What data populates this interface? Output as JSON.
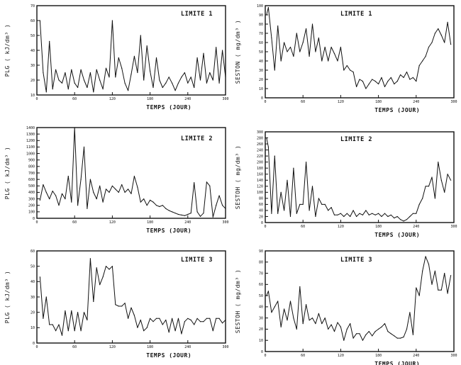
{
  "chart_data": [
    {
      "type": "line",
      "title": "LIMITE 1",
      "xlabel": "TEMPS (JOUR)",
      "ylabel": "PLG ( kJ/dm³ )",
      "xlim": [
        0,
        300
      ],
      "ylim": [
        10,
        70
      ],
      "xticks": [
        0,
        60,
        120,
        180,
        240,
        300
      ],
      "xtick_labels": [
        "0",
        "60",
        "120",
        "180",
        "240",
        "300"
      ],
      "yticks": [
        10,
        20,
        30,
        40,
        50,
        60,
        70
      ],
      "ytick_labels": [
        "10",
        "20",
        "30",
        "40",
        "50",
        "60",
        "70"
      ],
      "x": [
        5,
        10,
        15,
        20,
        25,
        30,
        35,
        40,
        45,
        50,
        55,
        60,
        65,
        70,
        75,
        80,
        85,
        90,
        95,
        100,
        105,
        110,
        115,
        120,
        125,
        130,
        135,
        140,
        145,
        150,
        155,
        160,
        165,
        170,
        175,
        180,
        185,
        190,
        195,
        200,
        205,
        210,
        215,
        220,
        225,
        230,
        235,
        240,
        245,
        250,
        255,
        260,
        265,
        270,
        275,
        280,
        285,
        290,
        295,
        300
      ],
      "values": [
        60,
        25,
        12,
        46,
        14,
        27,
        20,
        18,
        25,
        14,
        27,
        18,
        15,
        27,
        20,
        15,
        25,
        12,
        27,
        20,
        14,
        28,
        22,
        60,
        22,
        35,
        28,
        18,
        13,
        24,
        36,
        25,
        50,
        20,
        43,
        26,
        15,
        35,
        20,
        15,
        18,
        22,
        18,
        13,
        18,
        22,
        25,
        18,
        22,
        15,
        35,
        20,
        38,
        18,
        25,
        20,
        42,
        18,
        40,
        22
      ],
      "series": [
        {
          "name": "PLG"
        }
      ]
    },
    {
      "type": "line",
      "title": "LIMITE 1",
      "xlabel": "TEMPS (JOUR)",
      "ylabel": "SESTON ( mg/dm³ )",
      "xlim": [
        0,
        300
      ],
      "ylim": [
        0,
        100
      ],
      "xticks": [
        0,
        60,
        120,
        180,
        240,
        300
      ],
      "xtick_labels": [
        "0",
        "60",
        "120",
        "180",
        "240",
        "300"
      ],
      "yticks": [
        0,
        10,
        20,
        30,
        40,
        50,
        60,
        70,
        80,
        90,
        100
      ],
      "ytick_labels": [
        "0",
        "10",
        "20",
        "30",
        "40",
        "50",
        "60",
        "70",
        "80",
        "90",
        "100"
      ],
      "x": [
        2,
        5,
        10,
        15,
        20,
        25,
        30,
        35,
        40,
        45,
        50,
        55,
        60,
        65,
        70,
        75,
        80,
        85,
        90,
        95,
        100,
        105,
        110,
        115,
        120,
        125,
        130,
        135,
        140,
        145,
        150,
        155,
        160,
        165,
        170,
        175,
        180,
        185,
        190,
        195,
        200,
        205,
        210,
        215,
        220,
        225,
        230,
        235,
        240,
        245,
        250,
        255,
        260,
        265,
        270,
        275,
        280,
        285,
        290,
        295
      ],
      "values": [
        90,
        98,
        65,
        30,
        78,
        40,
        60,
        50,
        55,
        45,
        70,
        50,
        60,
        75,
        45,
        80,
        50,
        65,
        40,
        55,
        40,
        55,
        48,
        40,
        55,
        30,
        35,
        30,
        28,
        12,
        20,
        18,
        10,
        15,
        20,
        18,
        15,
        22,
        12,
        18,
        22,
        15,
        18,
        25,
        22,
        28,
        20,
        22,
        18,
        35,
        40,
        45,
        55,
        60,
        70,
        75,
        68,
        60,
        82,
        58
      ],
      "series": [
        {
          "name": "SESTON"
        }
      ]
    },
    {
      "type": "line",
      "title": "LIMITE 2",
      "xlabel": "TEMPS (JOUR)",
      "ylabel": "PLG ( kJ/dm³ )",
      "xlim": [
        0,
        300
      ],
      "ylim": [
        0,
        1400
      ],
      "xticks": [
        0,
        60,
        120,
        180,
        240,
        300
      ],
      "xtick_labels": [
        "0",
        "60",
        "120",
        "180",
        "240",
        "300"
      ],
      "yticks": [
        0,
        100,
        200,
        300,
        400,
        500,
        600,
        700,
        800,
        900,
        1000,
        1100,
        1200,
        1300,
        1400
      ],
      "ytick_labels": [
        "0",
        "100",
        "200",
        "300",
        "400",
        "500",
        "600",
        "700",
        "800",
        "900",
        "1000",
        "1100",
        "1200",
        "1300",
        "1400"
      ],
      "x": [
        5,
        10,
        15,
        20,
        25,
        30,
        35,
        40,
        45,
        50,
        55,
        60,
        65,
        70,
        75,
        80,
        85,
        90,
        95,
        100,
        105,
        110,
        115,
        120,
        125,
        130,
        135,
        140,
        145,
        150,
        155,
        160,
        165,
        170,
        175,
        180,
        185,
        190,
        195,
        200,
        205,
        210,
        215,
        220,
        225,
        230,
        235,
        240,
        245,
        250,
        255,
        260,
        265,
        270,
        275,
        280,
        285,
        290,
        295,
        300
      ],
      "values": [
        280,
        520,
        400,
        300,
        420,
        350,
        200,
        380,
        300,
        650,
        250,
        1400,
        200,
        600,
        1100,
        150,
        600,
        400,
        300,
        500,
        250,
        450,
        400,
        500,
        450,
        400,
        520,
        400,
        450,
        380,
        650,
        480,
        250,
        300,
        200,
        280,
        250,
        200,
        180,
        200,
        150,
        120,
        100,
        80,
        60,
        50,
        40,
        60,
        80,
        550,
        100,
        30,
        80,
        560,
        500,
        20,
        200,
        350,
        200,
        150
      ],
      "series": [
        {
          "name": "PLG"
        }
      ]
    },
    {
      "type": "line",
      "title": "LIMITE 2",
      "xlabel": "TEMPS (JOUR)",
      "ylabel": "SESTOH ( mg/dm³ )",
      "xlim": [
        0,
        300
      ],
      "ylim": [
        0,
        300
      ],
      "xticks": [
        0,
        60,
        120,
        180,
        240,
        300
      ],
      "xtick_labels": [
        "0",
        "60",
        "120",
        "180",
        "240",
        "300"
      ],
      "yticks": [
        0,
        20,
        40,
        60,
        80,
        100,
        120,
        140,
        160,
        180,
        200,
        220,
        240,
        260,
        280,
        300
      ],
      "ytick_labels": [
        "0",
        "20",
        "40",
        "60",
        "80",
        "100",
        "120",
        "140",
        "160",
        "180",
        "200",
        "220",
        "240",
        "260",
        "280",
        "300"
      ],
      "x": [
        2,
        5,
        10,
        15,
        20,
        25,
        30,
        35,
        40,
        45,
        50,
        55,
        60,
        65,
        70,
        75,
        80,
        85,
        90,
        95,
        100,
        105,
        110,
        115,
        120,
        125,
        130,
        135,
        140,
        145,
        150,
        155,
        160,
        165,
        170,
        175,
        180,
        185,
        190,
        195,
        200,
        205,
        210,
        215,
        220,
        225,
        230,
        235,
        240,
        245,
        250,
        255,
        260,
        265,
        270,
        275,
        280,
        285,
        290,
        295
      ],
      "values": [
        280,
        250,
        30,
        220,
        30,
        100,
        40,
        140,
        20,
        180,
        30,
        60,
        60,
        200,
        40,
        120,
        20,
        80,
        60,
        60,
        40,
        50,
        25,
        25,
        30,
        20,
        30,
        20,
        40,
        20,
        30,
        25,
        40,
        25,
        30,
        25,
        30,
        20,
        30,
        20,
        25,
        15,
        20,
        10,
        5,
        10,
        20,
        30,
        30,
        60,
        80,
        120,
        120,
        150,
        80,
        200,
        140,
        100,
        160,
        140
      ],
      "series": [
        {
          "name": "SESTON"
        }
      ]
    },
    {
      "type": "line",
      "title": "LIMITE 3",
      "xlabel": "TEMPS (JOUR)",
      "ylabel": "PLG ( kJ/dm³ )",
      "xlim": [
        0,
        300
      ],
      "ylim": [
        0,
        60
      ],
      "xticks": [
        0,
        60,
        120,
        180,
        240,
        300
      ],
      "xtick_labels": [
        "0",
        "60",
        "120",
        "180",
        "240",
        "300"
      ],
      "yticks": [
        0,
        10,
        20,
        30,
        40,
        50,
        60
      ],
      "ytick_labels": [
        "0",
        "10",
        "20",
        "30",
        "40",
        "50",
        "60"
      ],
      "x": [
        5,
        10,
        15,
        20,
        25,
        30,
        35,
        40,
        45,
        50,
        55,
        60,
        65,
        70,
        75,
        80,
        85,
        90,
        95,
        100,
        105,
        110,
        115,
        120,
        125,
        130,
        135,
        140,
        145,
        150,
        155,
        160,
        165,
        170,
        175,
        180,
        185,
        190,
        195,
        200,
        205,
        210,
        215,
        220,
        225,
        230,
        235,
        240,
        245,
        250,
        255,
        260,
        265,
        270,
        275,
        280,
        285,
        290,
        295,
        300
      ],
      "values": [
        43,
        16,
        30,
        12,
        12,
        8,
        12,
        5,
        21,
        8,
        21,
        8,
        20,
        8,
        20,
        15,
        55,
        27,
        49,
        38,
        43,
        50,
        48,
        50,
        25,
        24,
        24,
        26,
        16,
        23,
        18,
        10,
        15,
        8,
        10,
        16,
        14,
        16,
        16,
        12,
        15,
        7,
        16,
        8,
        16,
        6,
        14,
        16,
        15,
        12,
        16,
        14,
        14,
        16,
        16,
        8,
        16,
        16,
        13,
        15
      ],
      "series": [
        {
          "name": "PLG"
        }
      ]
    },
    {
      "type": "line",
      "title": "LIMITE 3",
      "xlabel": "TEMPS (JOUR)",
      "ylabel": "SESTOH ( mg/dm³ )",
      "xlim": [
        0,
        300
      ],
      "ylim": [
        0,
        90
      ],
      "xticks": [
        0,
        60,
        120,
        180,
        240,
        300
      ],
      "xtick_labels": [
        "0",
        "60",
        "120",
        "180",
        "240",
        "300"
      ],
      "yticks": [
        0,
        10,
        20,
        30,
        40,
        50,
        60,
        70,
        80,
        90
      ],
      "ytick_labels": [
        "0",
        "10",
        "20",
        "30",
        "40",
        "50",
        "60",
        "70",
        "80",
        "90"
      ],
      "x": [
        2,
        5,
        10,
        15,
        20,
        25,
        30,
        35,
        40,
        45,
        50,
        55,
        60,
        65,
        70,
        75,
        80,
        85,
        90,
        95,
        100,
        105,
        110,
        115,
        120,
        125,
        130,
        135,
        140,
        145,
        150,
        155,
        160,
        165,
        170,
        175,
        180,
        185,
        190,
        195,
        200,
        205,
        210,
        215,
        220,
        225,
        230,
        235,
        240,
        245,
        250,
        255,
        260,
        265,
        270,
        275,
        280,
        285,
        290,
        295
      ],
      "values": [
        50,
        54,
        35,
        40,
        45,
        22,
        38,
        28,
        45,
        30,
        20,
        58,
        25,
        42,
        28,
        30,
        25,
        34,
        25,
        30,
        20,
        24,
        18,
        26,
        22,
        10,
        20,
        25,
        12,
        16,
        16,
        10,
        15,
        18,
        14,
        18,
        20,
        22,
        25,
        18,
        16,
        14,
        12,
        12,
        13,
        20,
        35,
        15,
        57,
        50,
        72,
        85,
        78,
        60,
        72,
        55,
        55,
        70,
        52,
        68
      ],
      "series": [
        {
          "name": "SESTON"
        }
      ]
    }
  ]
}
